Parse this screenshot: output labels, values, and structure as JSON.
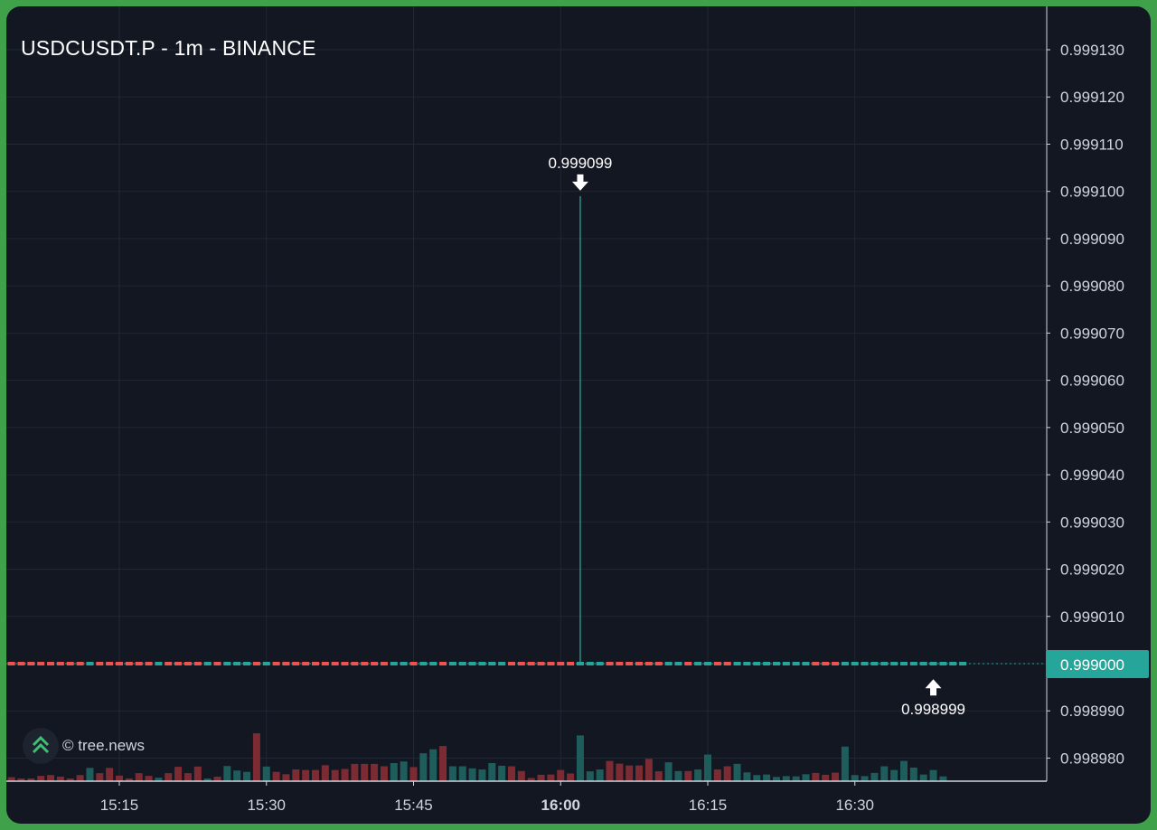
{
  "title": "USDCUSDT.P - 1m - BINANCE",
  "watermark": "© tree.news",
  "colors": {
    "background": "#131722",
    "grid": "#222735",
    "up": "#26a69a",
    "down": "#ef5350",
    "volume_up": "#1f5d5d",
    "volume_down": "#7d2b33",
    "price_badge": "#26a69a"
  },
  "chart_data": {
    "type": "candlestick",
    "title": "USDCUSDT.P - 1m - BINANCE",
    "x_ticks": [
      {
        "label": "15:15",
        "minute": 15,
        "bold": false
      },
      {
        "label": "15:30",
        "minute": 30,
        "bold": false
      },
      {
        "label": "15:45",
        "minute": 45,
        "bold": false
      },
      {
        "label": "16:00",
        "minute": 60,
        "bold": true
      },
      {
        "label": "16:15",
        "minute": 75,
        "bold": false
      },
      {
        "label": "16:30",
        "minute": 90,
        "bold": false
      }
    ],
    "y_ticks": [
      "0.999130",
      "0.999120",
      "0.999110",
      "0.999100",
      "0.999090",
      "0.999080",
      "0.999070",
      "0.999060",
      "0.999050",
      "0.999040",
      "0.999030",
      "0.999020",
      "0.999010",
      "0.999000",
      "0.998990",
      "0.998980"
    ],
    "ylim": [
      0.998975,
      0.999135
    ],
    "grid": true,
    "current_price": "0.999000",
    "annotations": [
      {
        "label": "0.999099",
        "minute": 62,
        "price": 0.999099,
        "type": "high"
      },
      {
        "label": "0.998999",
        "minute": 98,
        "price": 0.998999,
        "type": "low"
      }
    ],
    "start_minute": 3,
    "candle_directions": "ddddddddduddddddudddduduuududddddddddddduuduuduuuuuuddddddduuudddddduuduudduuuuuuuuddduuuuuuuuuuuuu",
    "spike": {
      "minute": 62,
      "high": 0.999099,
      "open": 0.999,
      "close": 0.999
    },
    "volume": [
      4,
      1.5,
      1,
      1,
      2,
      2.3,
      1.7,
      1,
      2.3,
      5,
      3,
      5,
      2.1,
      1,
      3,
      2,
      1.3,
      3,
      5.4,
      3,
      5.5,
      1,
      1.7,
      5.7,
      4,
      3.5,
      18,
      5.5,
      3.5,
      2.6,
      4.4,
      4.2,
      4.2,
      6,
      4.2,
      4.6,
      6.5,
      6.5,
      6.5,
      5.6,
      6.8,
      7.4,
      5.3,
      10.5,
      12,
      13.2,
      5.6,
      5.6,
      4.8,
      4.4,
      6.8,
      5.8,
      5.6,
      3.8,
      1.2,
      2.4,
      2.5,
      4.2,
      2.9,
      17.2,
      3.7,
      4.4,
      7.6,
      6.6,
      5.9,
      5.9,
      8.4,
      3.7,
      7.1,
      3.8,
      3.8,
      4.4,
      10,
      4.4,
      5.6,
      6.5,
      3.3,
      2.3,
      2.5,
      1.6,
      1.9,
      1.8,
      2.6,
      3.1,
      2.4,
      3.2,
      13,
      2.3,
      1.9,
      3.1,
      5.6,
      4.2,
      7.6,
      5.1,
      2.5,
      4.2,
      1.8
    ],
    "volume_max": 34
  }
}
